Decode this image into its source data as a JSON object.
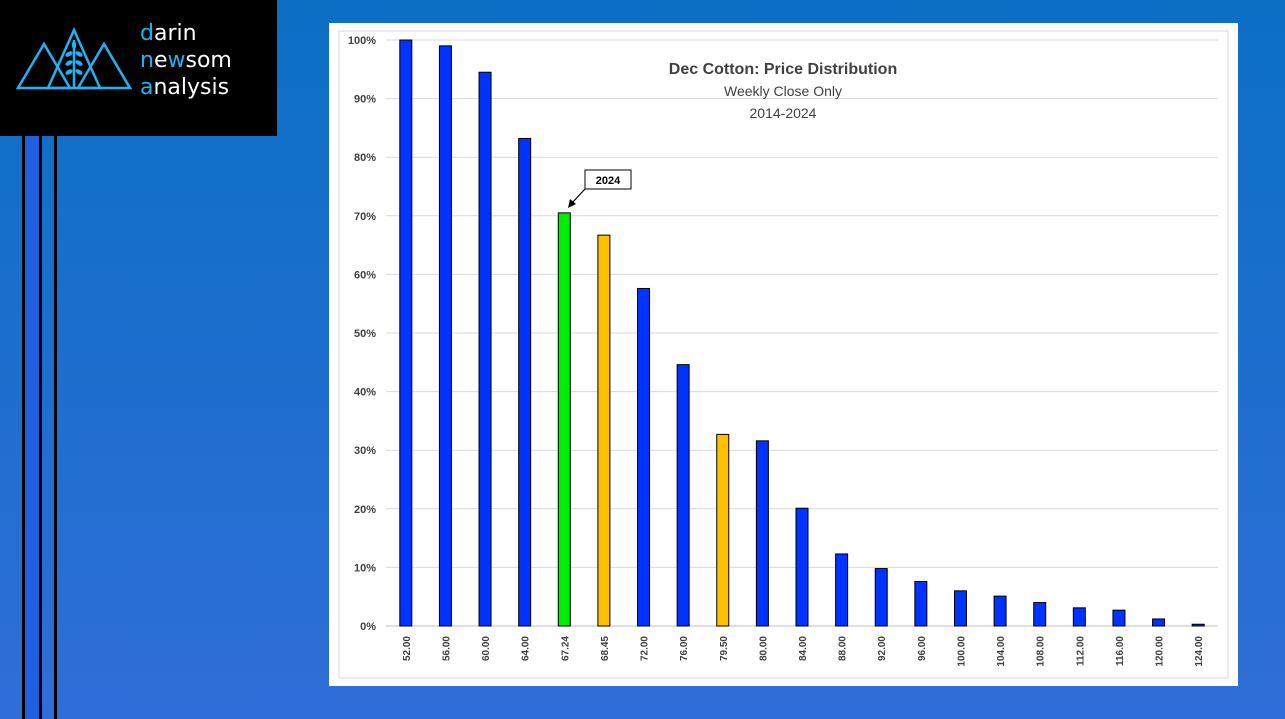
{
  "brand": {
    "line1_accent": "d",
    "line1_rest": "arin",
    "line2_accent": "n",
    "line2_mid": "e",
    "line2_accent2": "w",
    "line2_rest": "som",
    "line3_accent": "a",
    "line3_rest": "nalysis"
  },
  "colors": {
    "background_top": "#0b6fc4",
    "background_bottom": "#2f6ed8",
    "brand_accent": "#1fb3f5",
    "bar_default": "#0033ff",
    "bar_current": "#00ee00",
    "bar_highlight": "#ffc000"
  },
  "chart_data": {
    "type": "bar",
    "title": "Dec Cotton: Price Distribution",
    "subtitle_1": "Weekly Close Only",
    "subtitle_2": "2014-2024",
    "categories": [
      "52.00",
      "56.00",
      "60.00",
      "64.00",
      "67.24",
      "68.45",
      "72.00",
      "76.00",
      "79.50",
      "80.00",
      "84.00",
      "88.00",
      "92.00",
      "96.00",
      "100.00",
      "104.00",
      "108.00",
      "112.00",
      "116.00",
      "120.00",
      "124.00"
    ],
    "values": [
      100,
      99,
      94.5,
      83.2,
      70.5,
      66.7,
      57.6,
      44.6,
      32.7,
      31.6,
      20.1,
      12.3,
      9.8,
      7.6,
      6.0,
      5.1,
      4.0,
      3.1,
      2.7,
      1.2,
      0.3
    ],
    "bar_colors": [
      "default",
      "default",
      "default",
      "default",
      "current",
      "highlight",
      "default",
      "default",
      "highlight",
      "default",
      "default",
      "default",
      "default",
      "default",
      "default",
      "default",
      "default",
      "default",
      "default",
      "default",
      "default"
    ],
    "ylim": [
      0,
      100
    ],
    "yticks": [
      "0%",
      "10%",
      "20%",
      "30%",
      "40%",
      "50%",
      "60%",
      "70%",
      "80%",
      "90%",
      "100%"
    ],
    "grid": true,
    "annotation": {
      "text": "2024",
      "category": "67.24"
    }
  }
}
